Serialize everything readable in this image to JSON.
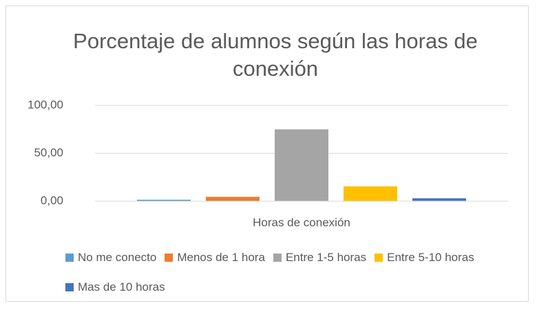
{
  "chart_data": {
    "type": "bar",
    "title": "Porcentaje de alumnos según las horas de conexión",
    "categories": [
      "Horas de conexión"
    ],
    "series": [
      {
        "name": "No me conecto",
        "color": "#5b9bd5",
        "values": [
          1.5
        ]
      },
      {
        "name": "Menos de 1 hora",
        "color": "#ed7d31",
        "values": [
          4.5
        ]
      },
      {
        "name": "Entre 1-5 horas",
        "color": "#a5a5a5",
        "values": [
          75
        ]
      },
      {
        "name": "Entre 5-10 horas",
        "color": "#ffc000",
        "values": [
          15.5
        ]
      },
      {
        "name": "Mas de 10 horas",
        "color": "#4472c4",
        "values": [
          3
        ]
      }
    ],
    "ylim": [
      0,
      100
    ],
    "yticks": [
      {
        "value": 0,
        "label": "0,00"
      },
      {
        "value": 50,
        "label": "50,00"
      },
      {
        "value": 100,
        "label": "100,00"
      }
    ],
    "grid": true,
    "legend": "bottom"
  }
}
